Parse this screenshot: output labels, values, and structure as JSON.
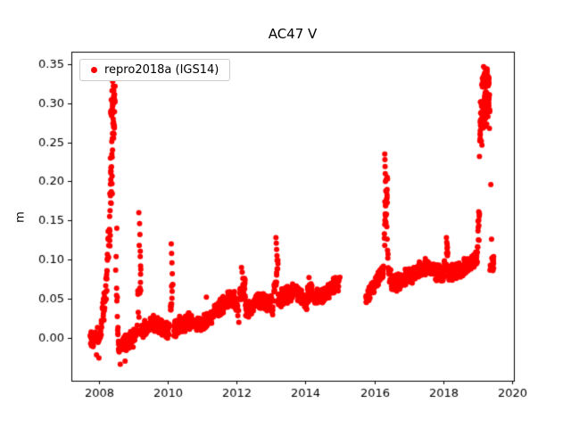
{
  "title": "AC47 V",
  "legend": {
    "label": "repro2018a (IGS14)",
    "marker_color": "#ff0000"
  },
  "axes": {
    "ylabel": "m",
    "x_ticks": {
      "values": [
        2008,
        2010,
        2012,
        2014,
        2016,
        2018,
        2020
      ],
      "labels": [
        "2008",
        "2010",
        "2012",
        "2014",
        "2016",
        "2018",
        "2020"
      ]
    },
    "y_ticks": {
      "values": [
        0.0,
        0.05,
        0.1,
        0.15,
        0.2,
        0.25,
        0.3,
        0.35
      ],
      "labels": [
        "0.00",
        "0.05",
        "0.10",
        "0.15",
        "0.20",
        "0.25",
        "0.30",
        "0.35"
      ]
    }
  },
  "chart_data": {
    "type": "scatter",
    "title": "AC47 V",
    "xlabel": "",
    "ylabel": "m",
    "xlim": [
      2007.2,
      2020.05
    ],
    "ylim": [
      -0.055,
      0.366
    ],
    "grid": false,
    "legend_position": "upper-left",
    "series": [
      {
        "name": "repro2018a (IGS14)",
        "color": "#ff0000",
        "marker": "circle",
        "description": "Daily GPS vertical position time series (m) with seasonal baseline rising from ~0.00 m in 2008 to ~0.10 m in 2019, data gap during 2015, and large positive excursions (spikes) in mid-2008 (to ~0.33), early 2009 (to ~0.16), early 2010 (to ~0.12), early 2013 (to ~0.13), early 2016 (to ~0.235), early 2018 (to ~0.13) and early 2019 (to ~0.347).",
        "points_format": [
          "year_decimal",
          "value_m"
        ],
        "points": [
          [
            2007.93,
            -0.022
          ],
          [
            2008.0,
            -0.026
          ],
          [
            2008.4,
            0.328
          ],
          [
            2008.42,
            0.322
          ],
          [
            2008.38,
            0.316
          ],
          [
            2008.52,
            0.14
          ],
          [
            2008.5,
            0.104
          ],
          [
            2008.62,
            -0.034
          ],
          [
            2008.76,
            -0.03
          ],
          [
            2009.16,
            0.16
          ],
          [
            2009.18,
            0.146
          ],
          [
            2009.19,
            0.132
          ],
          [
            2009.17,
            0.118
          ],
          [
            2009.2,
            0.104
          ],
          [
            2009.21,
            0.092
          ],
          [
            2010.1,
            0.12
          ],
          [
            2010.11,
            0.108
          ],
          [
            2010.12,
            0.096
          ],
          [
            2010.13,
            0.082
          ],
          [
            2011.12,
            0.052
          ],
          [
            2012.14,
            0.09
          ],
          [
            2012.16,
            0.084
          ],
          [
            2012.18,
            0.076
          ],
          [
            2013.14,
            0.128
          ],
          [
            2013.15,
            0.121
          ],
          [
            2013.16,
            0.113
          ],
          [
            2013.17,
            0.105
          ],
          [
            2014.1,
            0.077
          ],
          [
            2016.3,
            0.235
          ],
          [
            2016.305,
            0.228
          ],
          [
            2016.31,
            0.219
          ],
          [
            2016.315,
            0.21
          ],
          [
            2016.32,
            0.2
          ],
          [
            2016.33,
            0.188
          ],
          [
            2016.34,
            0.174
          ],
          [
            2016.35,
            0.158
          ],
          [
            2016.36,
            0.142
          ],
          [
            2016.37,
            0.126
          ],
          [
            2016.38,
            0.112
          ],
          [
            2018.09,
            0.128
          ],
          [
            2018.1,
            0.122
          ],
          [
            2018.11,
            0.114
          ],
          [
            2018.12,
            0.105
          ],
          [
            2019.17,
            0.347
          ],
          [
            2019.21,
            0.345
          ],
          [
            2019.24,
            0.342
          ],
          [
            2019.1,
            0.302
          ],
          [
            2019.05,
            0.232
          ],
          [
            2019.06,
            0.252
          ],
          [
            2019.08,
            0.272
          ],
          [
            2019.32,
            0.3
          ],
          [
            2019.34,
            0.268
          ],
          [
            2019.38,
            0.196
          ],
          [
            2019.4,
            0.126
          ],
          [
            2019.41,
            0.102
          ],
          [
            2019.43,
            0.093
          ],
          [
            2019.44,
            0.086
          ],
          [
            2019.46,
            0.089
          ]
        ],
        "bands_format": [
          "x_start",
          "x_end",
          "y_start",
          "y_end",
          "y_spread",
          "points_per_year"
        ],
        "bands": [
          [
            2007.75,
            2008.05,
            -0.002,
            0.002,
            0.014,
            170
          ],
          [
            2008.05,
            2008.18,
            0.012,
            0.05,
            0.02,
            150
          ],
          [
            2008.18,
            2008.3,
            0.055,
            0.13,
            0.032,
            170
          ],
          [
            2008.3,
            2008.47,
            0.15,
            0.3,
            0.055,
            280
          ],
          [
            2008.34,
            2008.46,
            0.285,
            0.315,
            0.018,
            170
          ],
          [
            2008.47,
            2008.56,
            0.1,
            0.01,
            0.03,
            110
          ],
          [
            2008.56,
            2009.12,
            -0.012,
            0.004,
            0.013,
            160
          ],
          [
            2009.13,
            2009.22,
            0.03,
            0.09,
            0.04,
            130
          ],
          [
            2009.22,
            2009.6,
            0.006,
            0.02,
            0.013,
            150
          ],
          [
            2009.6,
            2010.05,
            0.016,
            0.008,
            0.013,
            150
          ],
          [
            2010.07,
            2010.16,
            0.035,
            0.075,
            0.028,
            130
          ],
          [
            2010.16,
            2010.6,
            0.012,
            0.022,
            0.013,
            150
          ],
          [
            2010.6,
            2011.05,
            0.022,
            0.018,
            0.013,
            150
          ],
          [
            2011.05,
            2011.55,
            0.02,
            0.04,
            0.013,
            150
          ],
          [
            2011.55,
            2011.95,
            0.042,
            0.05,
            0.013,
            150
          ],
          [
            2011.95,
            2012.08,
            0.045,
            0.028,
            0.012,
            130
          ],
          [
            2012.08,
            2012.25,
            0.05,
            0.062,
            0.018,
            150
          ],
          [
            2012.25,
            2012.7,
            0.036,
            0.05,
            0.014,
            150
          ],
          [
            2012.7,
            2013.05,
            0.05,
            0.04,
            0.014,
            150
          ],
          [
            2013.08,
            2013.2,
            0.055,
            0.095,
            0.028,
            150
          ],
          [
            2013.2,
            2013.65,
            0.046,
            0.062,
            0.013,
            150
          ],
          [
            2013.65,
            2014.05,
            0.062,
            0.04,
            0.013,
            150
          ],
          [
            2014.05,
            2014.2,
            0.055,
            0.066,
            0.014,
            140
          ],
          [
            2014.2,
            2014.6,
            0.048,
            0.058,
            0.012,
            150
          ],
          [
            2014.6,
            2015.0,
            0.058,
            0.072,
            0.012,
            150
          ],
          [
            2015.75,
            2016.05,
            0.052,
            0.068,
            0.011,
            160
          ],
          [
            2016.05,
            2016.27,
            0.068,
            0.088,
            0.013,
            160
          ],
          [
            2016.28,
            2016.38,
            0.12,
            0.2,
            0.04,
            240
          ],
          [
            2016.38,
            2016.5,
            0.095,
            0.075,
            0.018,
            130
          ],
          [
            2016.5,
            2017.05,
            0.068,
            0.08,
            0.013,
            160
          ],
          [
            2017.05,
            2017.55,
            0.078,
            0.093,
            0.012,
            160
          ],
          [
            2017.55,
            2018.0,
            0.092,
            0.078,
            0.012,
            160
          ],
          [
            2018.03,
            2018.14,
            0.088,
            0.112,
            0.018,
            150
          ],
          [
            2018.14,
            2018.6,
            0.08,
            0.09,
            0.012,
            160
          ],
          [
            2018.6,
            2018.97,
            0.09,
            0.1,
            0.012,
            160
          ],
          [
            2018.97,
            2019.07,
            0.105,
            0.17,
            0.028,
            160
          ],
          [
            2019.07,
            2019.35,
            0.27,
            0.315,
            0.035,
            320
          ],
          [
            2019.12,
            2019.3,
            0.328,
            0.34,
            0.01,
            200
          ],
          [
            2019.35,
            2019.47,
            0.088,
            0.1,
            0.009,
            130
          ]
        ],
        "data_gaps": [
          [
            2015.0,
            2015.75
          ]
        ]
      }
    ]
  }
}
